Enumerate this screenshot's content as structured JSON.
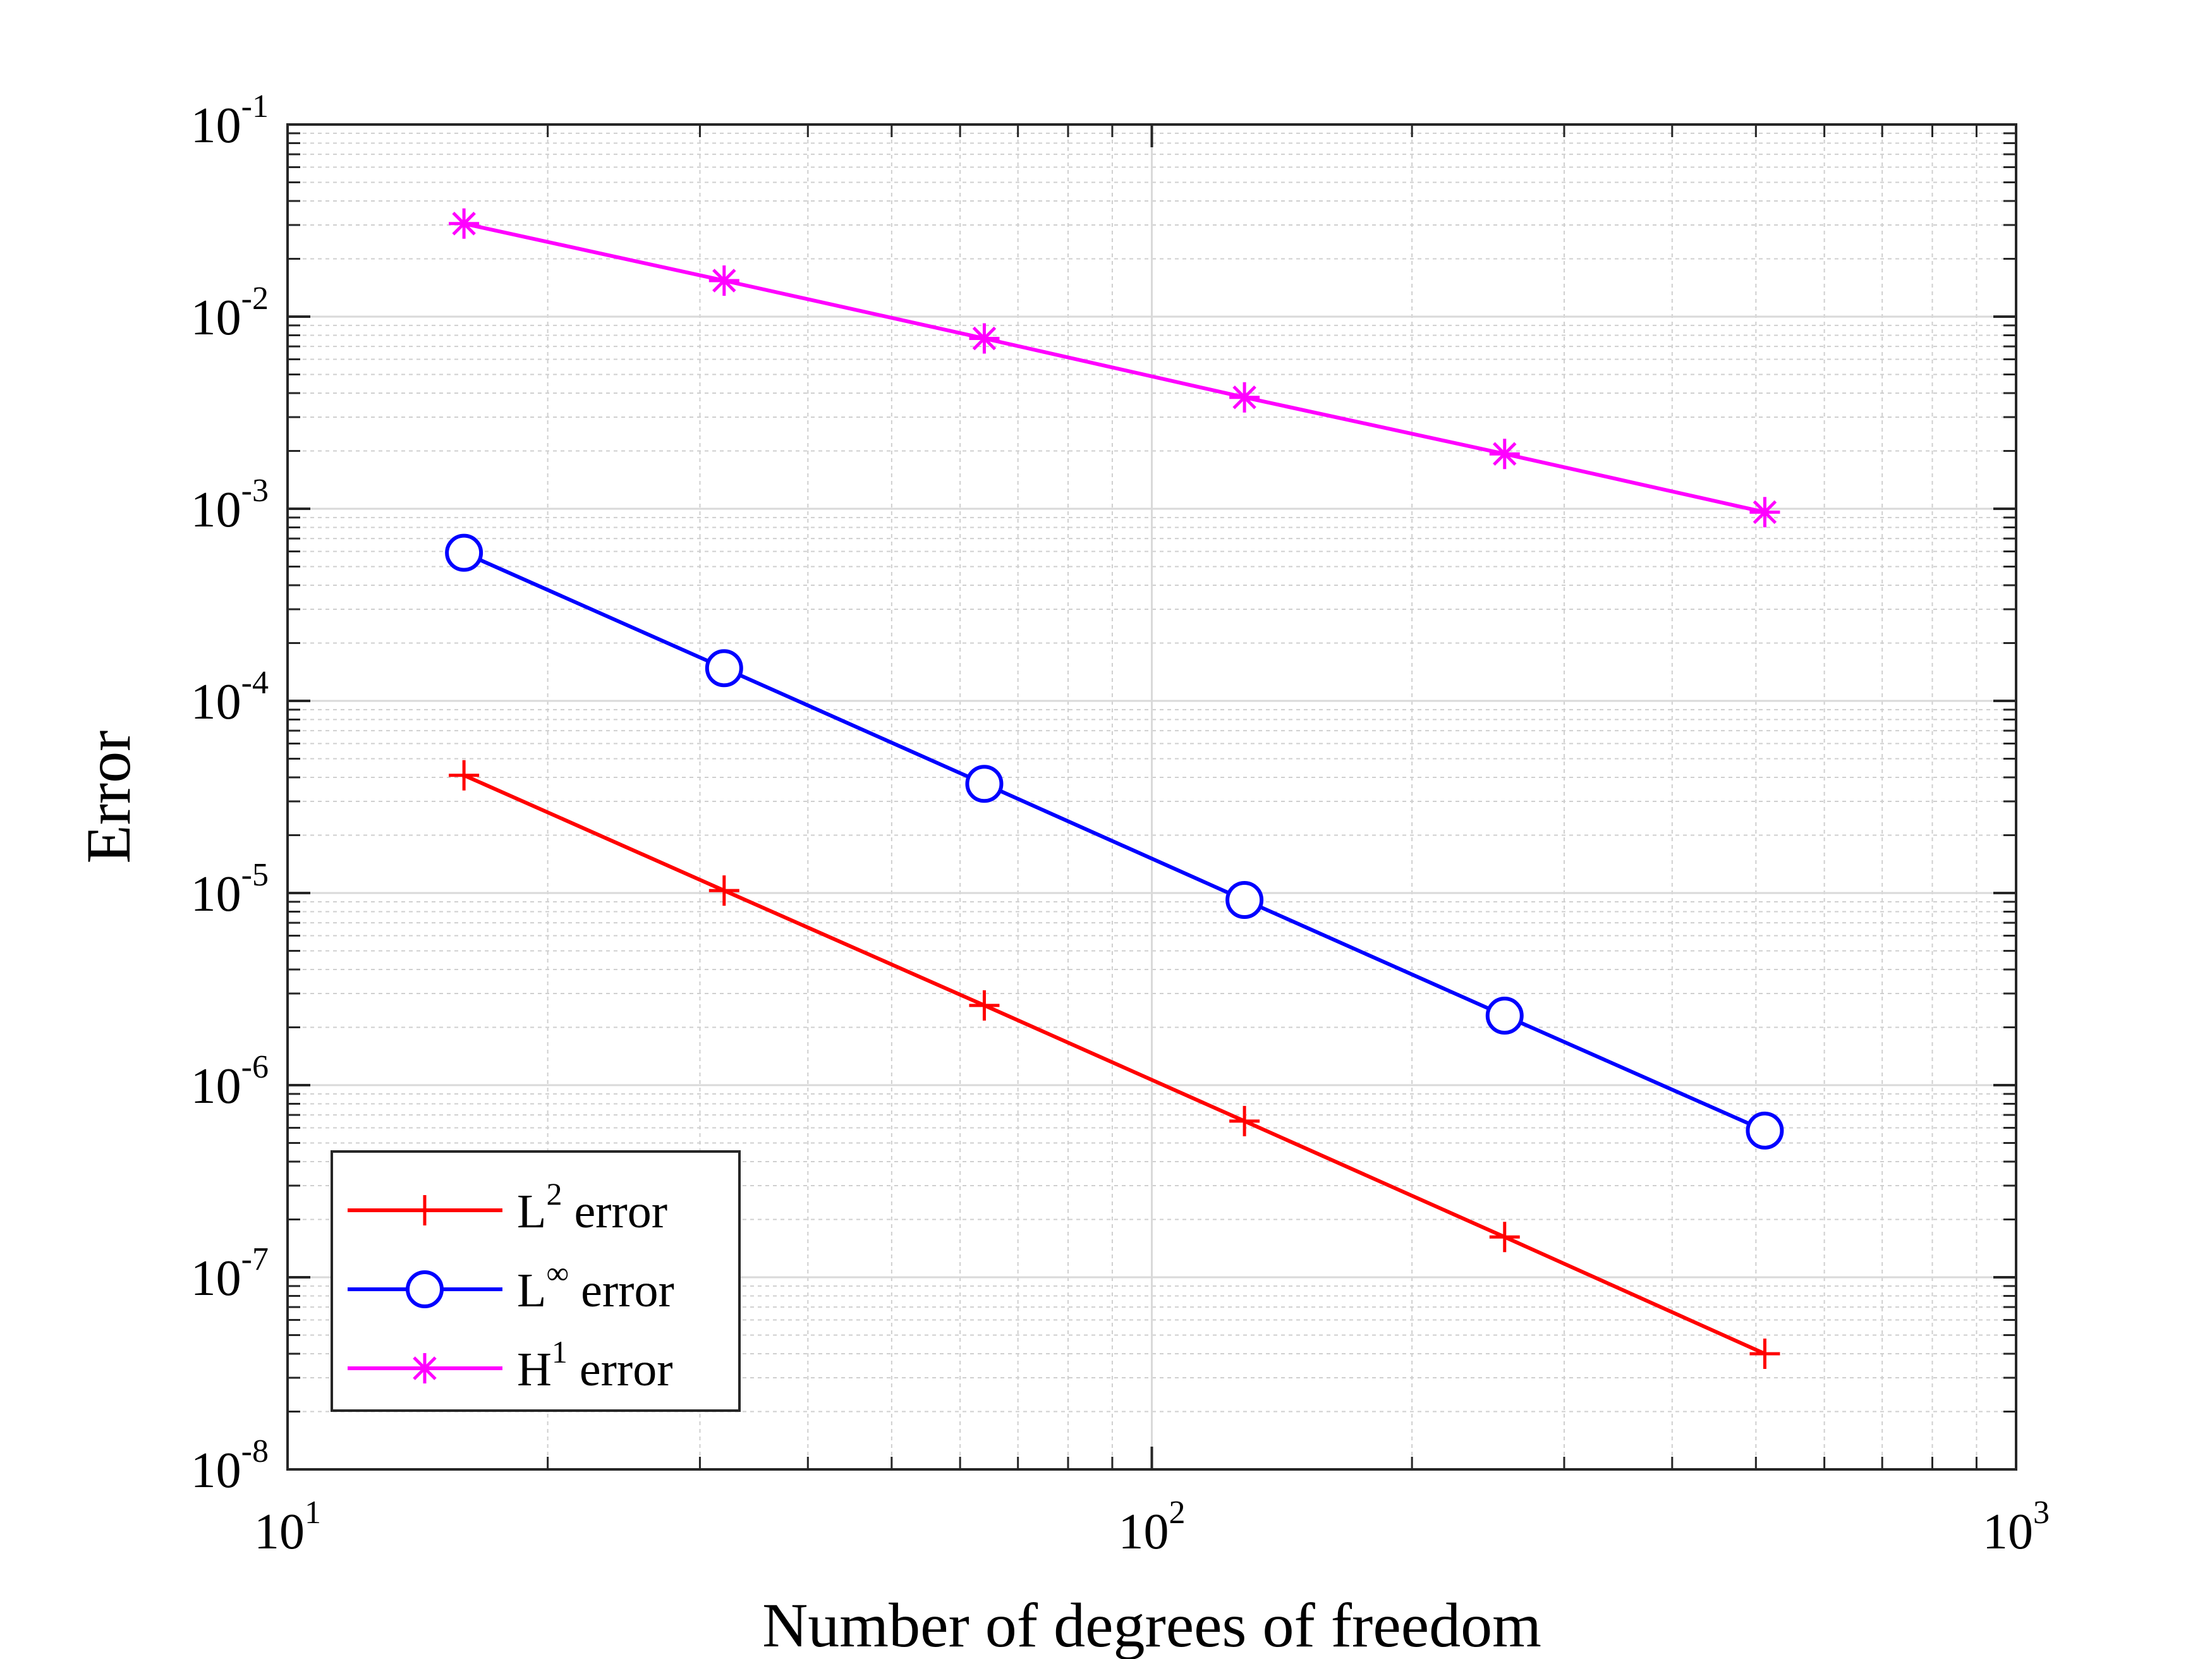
{
  "chart_data": {
    "type": "line",
    "xlabel": "Number of degrees of freedom",
    "ylabel": "Error",
    "xscale": "log",
    "yscale": "log",
    "xlim": [
      10,
      1000
    ],
    "ylim": [
      1e-08,
      0.1
    ],
    "grid": true,
    "minor_grid": true,
    "legend_position": "bottom-left",
    "x": [
      16,
      32,
      64,
      128,
      256,
      512
    ],
    "x_ticks": [
      {
        "base": "10",
        "exp": "1",
        "value": 10
      },
      {
        "base": "10",
        "exp": "2",
        "value": 100
      },
      {
        "base": "10",
        "exp": "3",
        "value": 1000
      }
    ],
    "y_ticks": [
      {
        "base": "10",
        "exp": "-1",
        "value": 0.1
      },
      {
        "base": "10",
        "exp": "-2",
        "value": 0.01
      },
      {
        "base": "10",
        "exp": "-3",
        "value": 0.001
      },
      {
        "base": "10",
        "exp": "-4",
        "value": 0.0001
      },
      {
        "base": "10",
        "exp": "-5",
        "value": 1e-05
      },
      {
        "base": "10",
        "exp": "-6",
        "value": 1e-06
      },
      {
        "base": "10",
        "exp": "-7",
        "value": 1e-07
      },
      {
        "base": "10",
        "exp": "-8",
        "value": 1e-08
      }
    ],
    "series": [
      {
        "key": "l2",
        "name_base": "L",
        "name_sup": "2",
        "name_rest": " error",
        "color": "#ff0000",
        "marker": "plus",
        "values": [
          4.1e-05,
          1.03e-05,
          2.6e-06,
          6.5e-07,
          1.62e-07,
          4e-08
        ]
      },
      {
        "key": "linf",
        "name_base": "L",
        "name_sup": "∞",
        "name_rest": " error",
        "color": "#0000ff",
        "marker": "circle",
        "values": [
          0.00059,
          0.000148,
          3.7e-05,
          9.2e-06,
          2.3e-06,
          5.8e-07
        ]
      },
      {
        "key": "h1",
        "name_base": "H",
        "name_sup": "1",
        "name_rest": " error",
        "color": "#ff00ff",
        "marker": "asterisk",
        "values": [
          0.0305,
          0.0154,
          0.0077,
          0.0038,
          0.00193,
          0.00096
        ]
      }
    ]
  }
}
